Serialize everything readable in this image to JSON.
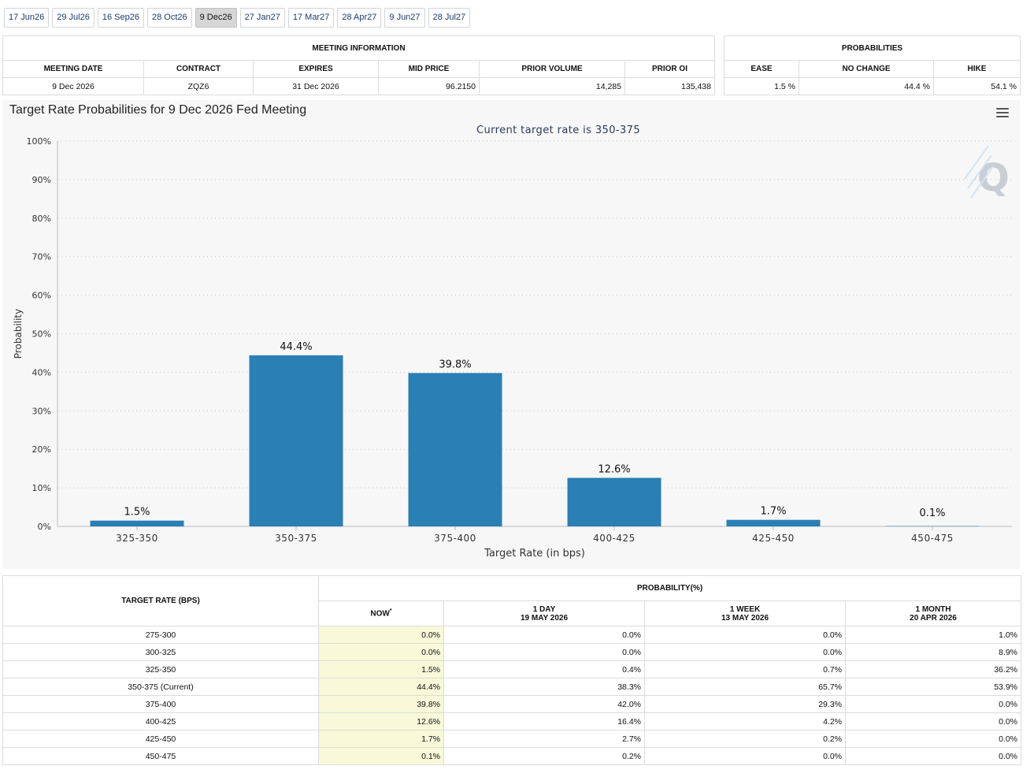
{
  "tabs": [
    "17 Jun26",
    "29 Jul26",
    "16 Sep26",
    "28 Oct26",
    "9 Dec26",
    "27 Jan27",
    "17 Mar27",
    "28 Apr27",
    "9 Jun27",
    "28 Jul27"
  ],
  "active_tab": 4,
  "meeting_info": {
    "title": "MEETING INFORMATION",
    "headers": {
      "date": "MEETING DATE",
      "contract": "CONTRACT",
      "expires": "EXPIRES",
      "mid": "MID PRICE",
      "volume": "PRIOR VOLUME",
      "oi": "PRIOR OI"
    },
    "values": {
      "date": "9 Dec 2026",
      "contract": "ZQZ6",
      "expires": "31 Dec 2026",
      "mid": "96.2150",
      "volume": "14,285",
      "oi": "135,438"
    }
  },
  "probabilities": {
    "title": "PROBABILITIES",
    "headers": {
      "ease": "EASE",
      "nochange": "NO CHANGE",
      "hike": "HIKE"
    },
    "values": {
      "ease": "1.5 %",
      "nochange": "44.4 %",
      "hike": "54.1 %"
    }
  },
  "chart_title": "Target Rate Probabilities for 9 Dec 2026 Fed Meeting",
  "chart_data": {
    "type": "bar",
    "subtitle": "Current target rate is 350-375",
    "xlabel": "Target Rate (in bps)",
    "ylabel": "Probability",
    "categories": [
      "325-350",
      "350-375",
      "375-400",
      "400-425",
      "425-450",
      "450-475"
    ],
    "values": [
      1.5,
      44.4,
      39.8,
      12.6,
      1.7,
      0.1
    ],
    "data_labels": [
      "1.5%",
      "44.4%",
      "39.8%",
      "12.6%",
      "1.7%",
      "0.1%"
    ],
    "ylim": [
      0,
      100
    ],
    "yticks": [
      "0%",
      "10%",
      "20%",
      "30%",
      "40%",
      "50%",
      "60%",
      "70%",
      "80%",
      "90%",
      "100%"
    ],
    "grid": true,
    "bar_color": "#2a7fb4"
  },
  "prob_table": {
    "target_header": "TARGET RATE (BPS)",
    "prob_header": "PROBABILITY(%)",
    "columns": [
      {
        "line1": "NOW",
        "line2": ""
      },
      {
        "line1": "1 DAY",
        "line2": "19 MAY 2026"
      },
      {
        "line1": "1 WEEK",
        "line2": "13 MAY 2026"
      },
      {
        "line1": "1 MONTH",
        "line2": "20 APR 2026"
      }
    ],
    "now_marker": "*",
    "rows": [
      {
        "rate": "275-300",
        "now": "0.0%",
        "day": "0.0%",
        "week": "0.0%",
        "month": "1.0%"
      },
      {
        "rate": "300-325",
        "now": "0.0%",
        "day": "0.0%",
        "week": "0.0%",
        "month": "8.9%"
      },
      {
        "rate": "325-350",
        "now": "1.5%",
        "day": "0.4%",
        "week": "0.7%",
        "month": "36.2%"
      },
      {
        "rate": "350-375 (Current)",
        "now": "44.4%",
        "day": "38.3%",
        "week": "65.7%",
        "month": "53.9%"
      },
      {
        "rate": "375-400",
        "now": "39.8%",
        "day": "42.0%",
        "week": "29.3%",
        "month": "0.0%"
      },
      {
        "rate": "400-425",
        "now": "12.6%",
        "day": "16.4%",
        "week": "4.2%",
        "month": "0.0%"
      },
      {
        "rate": "425-450",
        "now": "1.7%",
        "day": "2.7%",
        "week": "0.2%",
        "month": "0.0%"
      },
      {
        "rate": "450-475",
        "now": "0.1%",
        "day": "0.2%",
        "week": "0.0%",
        "month": "0.0%"
      }
    ]
  }
}
